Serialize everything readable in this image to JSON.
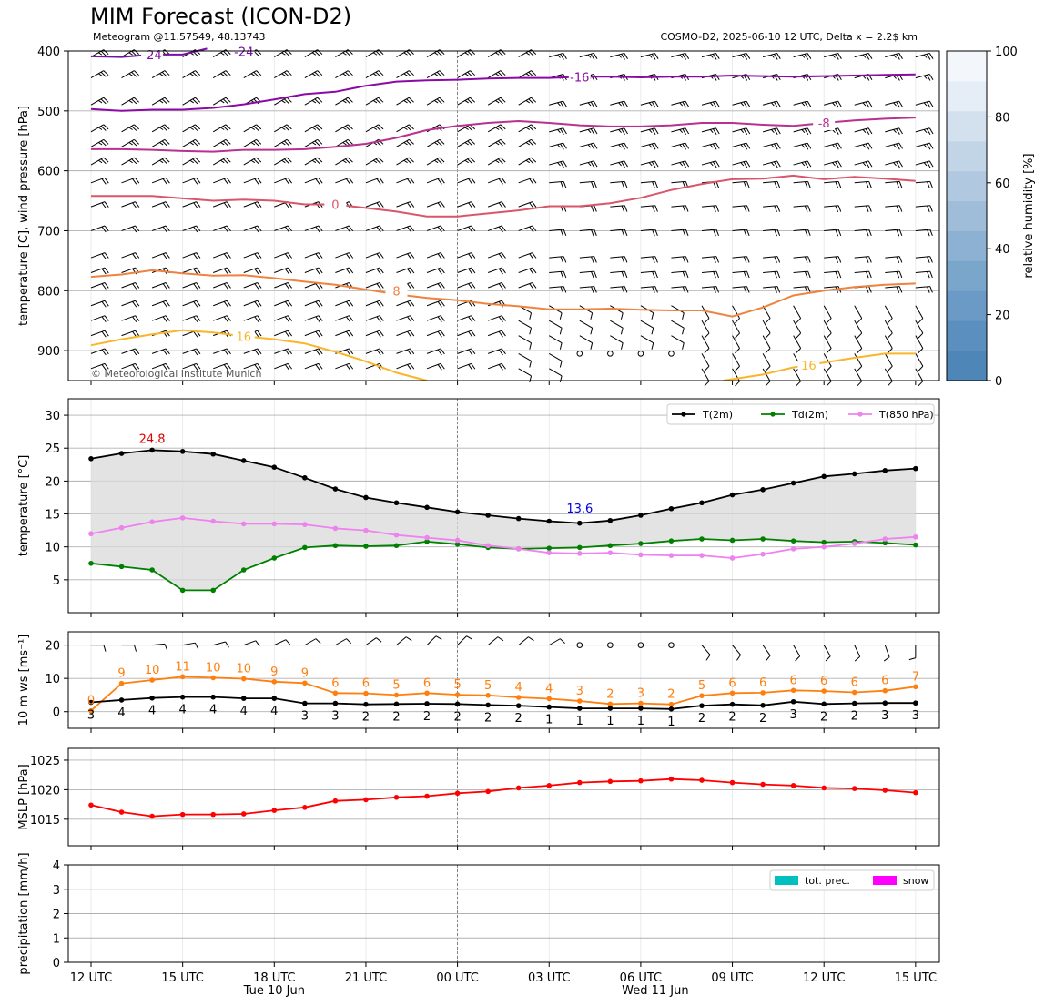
{
  "header": {
    "title": "MIM Forecast (ICON-D2)",
    "subtitle_left": "Meteogram @11.57549, 48.13743",
    "subtitle_right": "COSMO-D2, 2025-06-10 12 UTC, Delta x = 2.2$ km"
  },
  "chart_data": [
    {
      "type": "contour",
      "id": "upper_air",
      "ylabel": "temperature [C], wind pressure [hPa]",
      "yticks": [
        400,
        500,
        600,
        700,
        800,
        900
      ],
      "ylim": [
        950,
        400
      ],
      "y_inverted": true,
      "grid": true,
      "copyright": "© Meteorological Institute Munich",
      "colorbar": {
        "label": "relative humidity [%]",
        "ticks": [
          0,
          20,
          40,
          60,
          80,
          100
        ],
        "range": [
          0,
          100
        ],
        "colors": [
          "#4f86b8",
          "#5b8fbf",
          "#6a9ac5",
          "#7ba6cb",
          "#8db1d2",
          "#9fbcd9",
          "#b1c9e0",
          "#c2d5e7",
          "#d3e1ef",
          "#e5edf6",
          "#f3f7fc"
        ]
      },
      "isotherms": [
        {
          "label": "-24",
          "color": "#7a0fa6",
          "x": [
            0,
            1,
            2,
            3,
            3.8
          ],
          "p": [
            409,
            410,
            406,
            406,
            396
          ],
          "label_at": [
            [
              2,
              406
            ],
            [
              5,
              401
            ]
          ]
        },
        {
          "label": "-16",
          "color": "#8b0aa5",
          "x": [
            0,
            1,
            2,
            3,
            4,
            5,
            6,
            7,
            8,
            9,
            10,
            11,
            12,
            13,
            14,
            15,
            16,
            17,
            18,
            19,
            20,
            21,
            22,
            23,
            24,
            25,
            26,
            27
          ],
          "p": [
            497,
            500,
            498,
            498,
            495,
            489,
            481,
            472,
            468,
            458,
            451,
            449,
            448,
            446,
            445,
            445,
            443,
            443,
            444,
            443,
            443,
            441,
            442,
            443,
            442,
            441,
            440,
            439
          ],
          "label_at": [
            [
              16,
              443
            ]
          ]
        },
        {
          "label": "-8",
          "color": "#b8318f",
          "x": [
            0,
            1,
            2,
            3,
            4,
            5,
            6,
            7,
            8,
            9,
            10,
            11,
            12,
            13,
            14,
            15,
            16,
            17,
            18,
            19,
            20,
            21,
            22,
            23,
            24,
            25,
            26,
            27
          ],
          "p": [
            564,
            564,
            565,
            567,
            568,
            565,
            565,
            564,
            560,
            555,
            545,
            532,
            525,
            520,
            517,
            520,
            524,
            526,
            526,
            524,
            520,
            520,
            523,
            525,
            520,
            516,
            513,
            511
          ],
          "label_at": [
            [
              24,
              520
            ]
          ]
        },
        {
          "label": "0",
          "color": "#d9566a",
          "x": [
            0,
            1,
            2,
            3,
            4,
            5,
            6,
            7,
            8,
            9,
            10,
            11,
            12,
            13,
            14,
            15,
            16,
            17,
            18,
            19,
            20,
            21,
            22,
            23,
            24,
            25,
            26,
            27
          ],
          "p": [
            642,
            642,
            642,
            646,
            650,
            648,
            650,
            656,
            656,
            662,
            668,
            676,
            676,
            671,
            666,
            659,
            659,
            654,
            645,
            632,
            622,
            614,
            613,
            608,
            614,
            610,
            613,
            617
          ],
          "label_at": [
            [
              8,
              656
            ]
          ]
        },
        {
          "label": "8",
          "color": "#ee8340",
          "x": [
            0,
            1,
            2,
            3,
            4,
            5,
            6,
            7,
            8,
            9,
            10,
            11,
            12,
            13,
            14,
            15,
            16,
            17,
            18,
            19,
            20,
            21,
            22,
            23,
            24,
            25,
            26,
            27
          ],
          "p": [
            777,
            773,
            766,
            771,
            775,
            774,
            779,
            785,
            790,
            798,
            806,
            812,
            816,
            822,
            826,
            831,
            831,
            830,
            832,
            833,
            833,
            843,
            828,
            808,
            800,
            794,
            790,
            788
          ],
          "label_at": [
            [
              10,
              800
            ]
          ]
        },
        {
          "label": "16",
          "color": "#f9b62b",
          "x": [
            0,
            1,
            2,
            3,
            4,
            5,
            6,
            7,
            8,
            9,
            10,
            11
          ],
          "p": [
            891,
            881,
            873,
            866,
            870,
            876,
            881,
            888,
            902,
            918,
            937,
            950
          ],
          "label_at": [
            [
              5,
              876
            ]
          ]
        },
        {
          "label": "16",
          "color": "#f9b62b",
          "x": [
            20.7,
            22,
            23,
            24,
            25,
            26,
            27
          ],
          "p": [
            950,
            940,
            928,
            920,
            912,
            905,
            905
          ],
          "label_at": [
            [
              23.5,
              924
            ]
          ]
        }
      ],
      "wind_levels_hpa": [
        410,
        445,
        490,
        535,
        560,
        590,
        620,
        660,
        700,
        745,
        770,
        795,
        825,
        850,
        875,
        905,
        930
      ]
    },
    {
      "type": "line",
      "id": "surface_temp",
      "ylabel": "temperature [$^\\circ$C]",
      "ylim": [
        0,
        32.5
      ],
      "yticks": [
        5,
        10,
        15,
        20,
        25,
        30
      ],
      "grid": true,
      "legend_position": "top-right",
      "legend": [
        "T(2m)",
        "Td(2m)",
        "T(850 hPa)"
      ],
      "series": [
        {
          "name": "T(2m)",
          "color": "#000000",
          "values": [
            23.4,
            24.2,
            24.7,
            24.5,
            24.1,
            23.1,
            22.1,
            20.5,
            18.8,
            17.5,
            16.7,
            16.0,
            15.3,
            14.8,
            14.3,
            13.9,
            13.6,
            14.0,
            14.8,
            15.8,
            16.7,
            17.9,
            18.7,
            19.7,
            20.7,
            21.1,
            21.6,
            21.9
          ]
        },
        {
          "name": "Td(2m)",
          "color": "#008000",
          "values": [
            7.5,
            7.0,
            6.5,
            3.4,
            3.4,
            6.5,
            8.3,
            9.9,
            10.2,
            10.1,
            10.2,
            10.8,
            10.4,
            9.9,
            9.7,
            9.8,
            9.9,
            10.2,
            10.5,
            10.9,
            11.2,
            11.0,
            11.2,
            10.9,
            10.7,
            10.8,
            10.6,
            10.3
          ]
        },
        {
          "name": "T(850 hPa)",
          "color": "#ee82ee",
          "values": [
            12.0,
            12.9,
            13.8,
            14.4,
            13.9,
            13.5,
            13.5,
            13.4,
            12.8,
            12.5,
            11.8,
            11.4,
            11.0,
            10.2,
            9.7,
            9.1,
            9.0,
            9.1,
            8.8,
            8.7,
            8.7,
            8.3,
            8.9,
            9.7,
            10.0,
            10.5,
            11.2,
            11.5
          ]
        }
      ],
      "annotations": [
        {
          "text": "24.8",
          "color": "#e00000",
          "x": 2,
          "y": 25.8
        },
        {
          "text": "13.6",
          "color": "#0000e0",
          "x": 16,
          "y": 15.2
        }
      ]
    },
    {
      "type": "line",
      "id": "wind",
      "ylabel": "10 m ws [ms$^{-1}$]",
      "ylim": [
        -5,
        24
      ],
      "yticks": [
        0,
        10,
        20
      ],
      "grid": true,
      "series": [
        {
          "name": "",
          "color": "#ff7f0e",
          "values": [
            0.3,
            8.5,
            9.5,
            10.5,
            10.2,
            9.9,
            9.0,
            8.6,
            5.6,
            5.5,
            5.0,
            5.6,
            5.1,
            4.9,
            4.3,
            3.9,
            3.2,
            2.3,
            2.5,
            2.2,
            4.8,
            5.6,
            5.7,
            6.4,
            6.2,
            5.8,
            6.3,
            7.5
          ]
        },
        {
          "name": "",
          "color": "#000000",
          "values": [
            2.8,
            3.5,
            4.1,
            4.4,
            4.4,
            4.0,
            4.0,
            2.5,
            2.5,
            2.2,
            2.3,
            2.4,
            2.3,
            2.0,
            1.8,
            1.4,
            1.0,
            1.0,
            1.0,
            0.8,
            1.8,
            2.2,
            1.9,
            3.0,
            2.3,
            2.5,
            2.6,
            2.6
          ]
        }
      ],
      "gust_labels": [
        "0",
        "9",
        "10",
        "11",
        "10",
        "10",
        "9",
        "9",
        "6",
        "6",
        "5",
        "6",
        "5",
        "5",
        "4",
        "4",
        "3",
        "2",
        "3",
        "2",
        "5",
        "6",
        "6",
        "6",
        "6",
        "6",
        "6",
        "7"
      ],
      "speed_labels": [
        "3",
        "4",
        "4",
        "4",
        "4",
        "4",
        "4",
        "3",
        "3",
        "2",
        "2",
        "2",
        "2",
        "2",
        "2",
        "1",
        "1",
        "1",
        "1",
        "1",
        "2",
        "2",
        "2",
        "3",
        "2",
        "2",
        "3",
        "3"
      ],
      "barb_direction_deg": [
        270,
        270,
        265,
        260,
        255,
        250,
        245,
        240,
        240,
        235,
        230,
        225,
        225,
        230,
        230,
        240,
        0,
        0,
        0,
        0,
        320,
        320,
        325,
        330,
        330,
        335,
        340,
        360
      ]
    },
    {
      "type": "line",
      "id": "mslp",
      "ylabel": "MSLP [hPa]",
      "ylim": [
        1010.5,
        1027
      ],
      "yticks": [
        1015,
        1020,
        1025
      ],
      "grid": true,
      "series": [
        {
          "name": "",
          "color": "#ff0000",
          "values": [
            1017.4,
            1016.2,
            1015.5,
            1015.8,
            1015.8,
            1015.9,
            1016.5,
            1017.0,
            1018.1,
            1018.3,
            1018.7,
            1018.9,
            1019.4,
            1019.7,
            1020.3,
            1020.7,
            1021.2,
            1021.4,
            1021.5,
            1021.8,
            1021.6,
            1021.2,
            1020.9,
            1020.7,
            1020.3,
            1020.2,
            1019.9,
            1019.5
          ]
        }
      ]
    },
    {
      "type": "bar",
      "id": "precip",
      "ylabel": "precipitation [mm/h]",
      "ylim": [
        0,
        4
      ],
      "yticks": [
        0,
        1,
        2,
        3,
        4
      ],
      "grid": true,
      "legend_position": "top-right",
      "legend": [
        "tot. prec.",
        "snow"
      ],
      "legend_colors": [
        "#00bfbf",
        "#ff00ff"
      ],
      "series": [
        {
          "name": "tot. prec.",
          "values": [
            0,
            0,
            0,
            0,
            0,
            0,
            0,
            0,
            0,
            0,
            0,
            0,
            0,
            0,
            0,
            0,
            0,
            0,
            0,
            0,
            0,
            0,
            0,
            0,
            0,
            0,
            0,
            0
          ]
        },
        {
          "name": "snow",
          "values": [
            0,
            0,
            0,
            0,
            0,
            0,
            0,
            0,
            0,
            0,
            0,
            0,
            0,
            0,
            0,
            0,
            0,
            0,
            0,
            0,
            0,
            0,
            0,
            0,
            0,
            0,
            0,
            0
          ]
        }
      ],
      "xtick_labels": [
        "12 UTC",
        "15 UTC",
        "18 UTC",
        "21 UTC",
        "00 UTC",
        "03 UTC",
        "06 UTC",
        "09 UTC",
        "12 UTC",
        "15 UTC"
      ],
      "day_labels": [
        "Tue 10 Jun",
        "Wed 11 Jun"
      ]
    }
  ]
}
